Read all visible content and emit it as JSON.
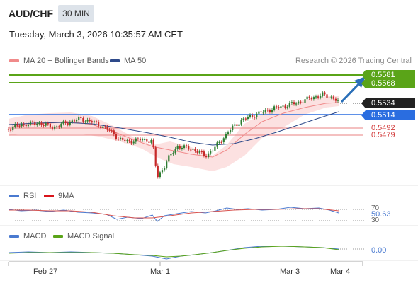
{
  "header": {
    "pair": "AUD/CHF",
    "timeframe": "30 MIN",
    "datetime": "Tuesday, March 3, 2026 10:35:57 AM CET"
  },
  "legend": {
    "ma20": "MA 20 + Bollinger Bands",
    "ma50": "MA 50",
    "credit": "Research © 2026 Trading Central"
  },
  "colors": {
    "bull": "#2e7d32",
    "bear": "#c62828",
    "resistance": "#5aa418",
    "support": "#2a6de0",
    "level": "#e88080",
    "ma20": "#f08a8a",
    "ma50": "#2e4a8a",
    "bands": "#fcdcdc"
  },
  "price_levels": {
    "r2": "0.5581",
    "r1": "0.5568",
    "last": "0.5534",
    "pivot": "0.5514",
    "s1": "0.5492",
    "s2": "0.5479"
  },
  "rsi": {
    "label": "RSI",
    "ma_label": "9MA",
    "value": "50.63",
    "upper": "70",
    "lower": "30"
  },
  "macd": {
    "label": "MACD",
    "signal_label": "MACD Signal",
    "value": "0.00"
  },
  "x_axis": [
    "Feb 27",
    "Mar 1",
    "Mar 3",
    "Mar 4"
  ]
}
